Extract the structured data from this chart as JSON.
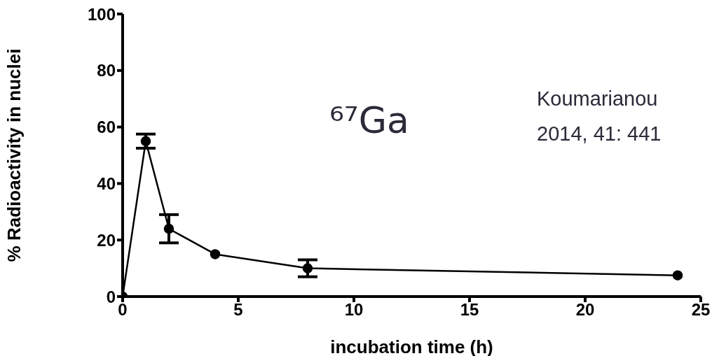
{
  "chart_data": {
    "type": "line",
    "xlabel": "incubation time (h)",
    "ylabel": "% Radioactivity in nuclei",
    "x": [
      0,
      1,
      2,
      4,
      8,
      24
    ],
    "series": [
      {
        "color": "#000000",
        "values": [
          0,
          55,
          24,
          15,
          10,
          7.5
        ],
        "errors": [
          null,
          2.5,
          5,
          null,
          3,
          null
        ]
      }
    ],
    "xlim": [
      0,
      25
    ],
    "xticks": [
      0,
      5,
      10,
      15,
      20,
      25
    ],
    "ylim": [
      0,
      100
    ],
    "yticks": [
      0,
      20,
      40,
      60,
      80,
      100
    ],
    "grid": false,
    "legend": false,
    "marker": "circle",
    "line_style": "solid",
    "annotations": [
      "⁶⁷Ga",
      "Koumarianou",
      "2014, 41: 441"
    ]
  }
}
